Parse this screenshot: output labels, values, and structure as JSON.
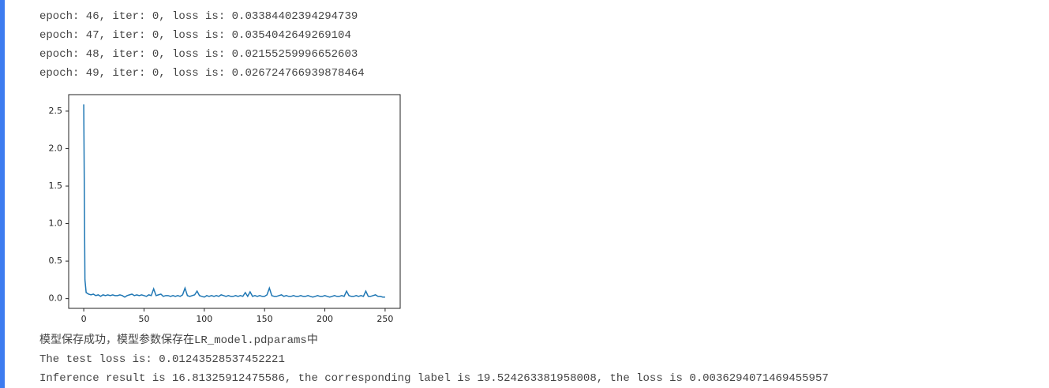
{
  "lines_before": [
    "epoch: 46, iter: 0, loss is: 0.03384402394294739",
    "epoch: 47, iter: 0, loss is: 0.0354042649269104",
    "epoch: 48, iter: 0, loss is: 0.02155259996652603",
    "epoch: 49, iter: 0, loss is: 0.026724766939878464"
  ],
  "chart_data": {
    "type": "line",
    "color": "#1f77b4",
    "x": [
      0,
      1,
      2,
      4,
      6,
      8,
      10,
      12,
      14,
      16,
      18,
      20,
      22,
      24,
      26,
      28,
      30,
      32,
      34,
      36,
      38,
      40,
      42,
      44,
      46,
      48,
      50,
      52,
      54,
      56,
      58,
      60,
      62,
      64,
      66,
      68,
      70,
      72,
      74,
      76,
      78,
      80,
      82,
      84,
      86,
      88,
      90,
      92,
      94,
      96,
      98,
      100,
      102,
      104,
      106,
      108,
      110,
      112,
      114,
      116,
      118,
      120,
      122,
      124,
      126,
      128,
      130,
      132,
      134,
      136,
      138,
      140,
      142,
      144,
      146,
      148,
      150,
      152,
      154,
      156,
      158,
      160,
      162,
      164,
      166,
      168,
      170,
      172,
      174,
      176,
      178,
      180,
      182,
      184,
      186,
      188,
      190,
      192,
      194,
      196,
      198,
      200,
      202,
      204,
      206,
      208,
      210,
      212,
      214,
      216,
      218,
      220,
      222,
      224,
      226,
      228,
      230,
      232,
      234,
      236,
      238,
      240,
      242,
      244,
      246,
      248,
      250
    ],
    "values": [
      2.59,
      0.25,
      0.08,
      0.06,
      0.05,
      0.06,
      0.04,
      0.05,
      0.03,
      0.05,
      0.04,
      0.05,
      0.04,
      0.05,
      0.04,
      0.04,
      0.05,
      0.04,
      0.02,
      0.04,
      0.05,
      0.06,
      0.04,
      0.05,
      0.04,
      0.05,
      0.04,
      0.03,
      0.05,
      0.04,
      0.13,
      0.04,
      0.05,
      0.06,
      0.03,
      0.04,
      0.04,
      0.03,
      0.04,
      0.03,
      0.04,
      0.03,
      0.05,
      0.14,
      0.04,
      0.03,
      0.04,
      0.05,
      0.1,
      0.04,
      0.03,
      0.02,
      0.04,
      0.03,
      0.04,
      0.03,
      0.04,
      0.03,
      0.05,
      0.04,
      0.03,
      0.04,
      0.03,
      0.03,
      0.04,
      0.03,
      0.04,
      0.03,
      0.08,
      0.03,
      0.09,
      0.03,
      0.04,
      0.03,
      0.04,
      0.03,
      0.03,
      0.05,
      0.14,
      0.04,
      0.03,
      0.03,
      0.04,
      0.05,
      0.03,
      0.04,
      0.03,
      0.03,
      0.04,
      0.03,
      0.03,
      0.04,
      0.03,
      0.03,
      0.04,
      0.03,
      0.02,
      0.03,
      0.04,
      0.03,
      0.03,
      0.04,
      0.03,
      0.02,
      0.03,
      0.04,
      0.03,
      0.03,
      0.04,
      0.03,
      0.1,
      0.04,
      0.03,
      0.03,
      0.04,
      0.03,
      0.04,
      0.03,
      0.1,
      0.03,
      0.03,
      0.04,
      0.05,
      0.03,
      0.03,
      0.02,
      0.02
    ],
    "xlim": [
      -12.5,
      262.5
    ],
    "ylim": [
      -0.13,
      2.72
    ],
    "xticks": [
      0,
      50,
      100,
      150,
      200,
      250
    ],
    "yticks": [
      {
        "value": 0,
        "label": "0.0"
      },
      0.5,
      {
        "value": 1,
        "label": "1.0"
      },
      1.5,
      {
        "value": 2,
        "label": "2.0"
      },
      2.5
    ]
  },
  "lines_after": [
    "模型保存成功，模型参数保存在LR_model.pdparams中",
    "The test loss is: 0.01243528537452221",
    "Inference result is 16.81325912475586, the corresponding label is 19.524263381958008, the loss is 0.0036294071469455957"
  ]
}
